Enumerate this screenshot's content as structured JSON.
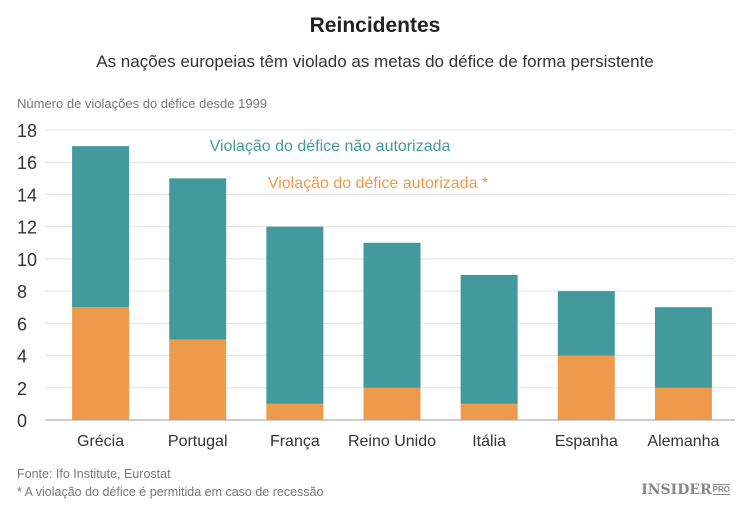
{
  "chart_data": {
    "type": "bar",
    "stacked": true,
    "title": "Reincidentes",
    "subtitle": "As nações europeias têm violado as metas do défice de forma persistente",
    "ylabel": "Número de violações do défice desde 1999",
    "categories": [
      "Grécia",
      "Portugal",
      "França",
      "Reino Unido",
      "Itália",
      "Espanha",
      "Alemanha"
    ],
    "series": [
      {
        "name": "Violação do défice autorizada *",
        "color": "#ee9a4d",
        "values": [
          7,
          5,
          1,
          2,
          1,
          4,
          2
        ]
      },
      {
        "name": "Violação do défice não autorizada",
        "color": "#439a9c",
        "values": [
          10,
          10,
          11,
          9,
          8,
          4,
          5
        ]
      }
    ],
    "ylim": [
      0,
      18
    ],
    "yticks": [
      0,
      2,
      4,
      6,
      8,
      10,
      12,
      14,
      16,
      18
    ],
    "grid": true,
    "legend": "top-center"
  },
  "footer": {
    "source": "Fonte: Ifo Institute, Eurostat",
    "note": "* A violação do défice é permitida em caso de recessão"
  },
  "logo": {
    "text": "INSIDER",
    "suffix": "PRO"
  }
}
